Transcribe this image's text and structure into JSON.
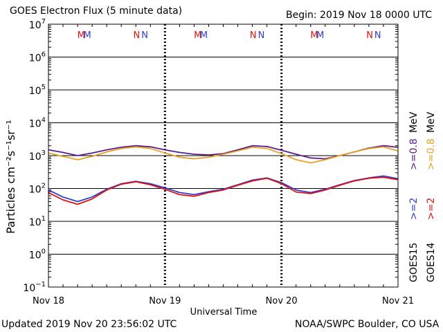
{
  "header": {
    "title": "GOES Electron Flux (5 minute data)",
    "begin": "Begin: 2019 Nov 18 0000 UTC"
  },
  "footer": {
    "updated": "Updated 2019 Nov 20 23:56:02 UTC",
    "credit": "NOAA/SWPC Boulder, CO USA"
  },
  "legend": {
    "goes15": "GOES15",
    "goes14": "GOES14",
    "g15_2mev": ">=2",
    "g14_2mev": ">=2",
    "g15_08mev": ">=0.8",
    "g14_08mev": ">=0.8",
    "mev1": "MeV",
    "mev2": "MeV"
  },
  "colors": {
    "goes15_2mev": "#2d3dd0",
    "goes14_2mev": "#e01010",
    "goes15_08mev": "#5a1a8c",
    "goes14_08mev": "#e8a020",
    "threshold": "#000000"
  },
  "chart_data": {
    "type": "line",
    "xlabel": "Universal Time",
    "ylabel": "Particles cm⁻²s⁻¹sr⁻¹",
    "y_scale": "log",
    "ylim": [
      0.1,
      10000000
    ],
    "xlim": [
      "2019-11-18 00:00",
      "2019-11-21 00:00"
    ],
    "x_ticks": [
      "Nov 18",
      "Nov 19",
      "Nov 20",
      "Nov 21"
    ],
    "y_ticks": [
      {
        "base": "10",
        "exp": "7"
      },
      {
        "base": "10",
        "exp": "6"
      },
      {
        "base": "10",
        "exp": "5"
      },
      {
        "base": "10",
        "exp": "4"
      },
      {
        "base": "10",
        "exp": "3"
      },
      {
        "base": "10",
        "exp": "2"
      },
      {
        "base": "10",
        "exp": "1"
      },
      {
        "base": "10",
        "exp": "0"
      },
      {
        "base": "10",
        "exp": "−1"
      }
    ],
    "threshold": 1000,
    "grid": true,
    "markers": [
      {
        "label": "M",
        "color": "#e01010",
        "x": "2019-11-18 06:45"
      },
      {
        "label": "M",
        "color": "#2d3dd0",
        "x": "2019-11-18 08:00"
      },
      {
        "label": "N",
        "color": "#e01010",
        "x": "2019-11-18 18:10"
      },
      {
        "label": "N",
        "color": "#2d3dd0",
        "x": "2019-11-18 19:50"
      },
      {
        "label": "M",
        "color": "#e01010",
        "x": "2019-11-19 06:45"
      },
      {
        "label": "M",
        "color": "#2d3dd0",
        "x": "2019-11-19 08:00"
      },
      {
        "label": "N",
        "color": "#e01010",
        "x": "2019-11-19 18:10"
      },
      {
        "label": "N",
        "color": "#2d3dd0",
        "x": "2019-11-19 19:50"
      },
      {
        "label": "M",
        "color": "#e01010",
        "x": "2019-11-20 06:45"
      },
      {
        "label": "M",
        "color": "#2d3dd0",
        "x": "2019-11-20 08:00"
      },
      {
        "label": "N",
        "color": "#e01010",
        "x": "2019-11-20 18:10"
      },
      {
        "label": "N",
        "color": "#2d3dd0",
        "x": "2019-11-20 19:50"
      }
    ],
    "series": [
      {
        "color": "#5a1a8c",
        "x": [
          "2019-11-18 00:00",
          "2019-11-18 03:00",
          "2019-11-18 06:00",
          "2019-11-18 09:00",
          "2019-11-18 12:00",
          "2019-11-18 15:00",
          "2019-11-18 18:00",
          "2019-11-18 21:00",
          "2019-11-19 00:00",
          "2019-11-19 03:00",
          "2019-11-19 06:00",
          "2019-11-19 09:00",
          "2019-11-19 12:00",
          "2019-11-19 15:00",
          "2019-11-19 18:00",
          "2019-11-19 21:00",
          "2019-11-20 00:00",
          "2019-11-20 03:00",
          "2019-11-20 06:00",
          "2019-11-20 09:00",
          "2019-11-20 12:00",
          "2019-11-20 15:00",
          "2019-11-20 18:00",
          "2019-11-20 21:00",
          "2019-11-20 23:55"
        ],
        "values": [
          1500,
          1250,
          1000,
          1200,
          1500,
          1800,
          2000,
          1850,
          1500,
          1250,
          1100,
          1050,
          1150,
          1500,
          2000,
          1900,
          1450,
          1100,
          850,
          800,
          1000,
          1300,
          1700,
          2000,
          1800
        ]
      },
      {
        "color": "#e8a020",
        "x": [
          "2019-11-18 00:00",
          "2019-11-18 03:00",
          "2019-11-18 06:00",
          "2019-11-18 09:00",
          "2019-11-18 12:00",
          "2019-11-18 15:00",
          "2019-11-18 18:00",
          "2019-11-18 21:00",
          "2019-11-19 00:00",
          "2019-11-19 03:00",
          "2019-11-19 06:00",
          "2019-11-19 09:00",
          "2019-11-19 12:00",
          "2019-11-19 15:00",
          "2019-11-19 18:00",
          "2019-11-19 21:00",
          "2019-11-20 00:00",
          "2019-11-20 03:00",
          "2019-11-20 06:00",
          "2019-11-20 09:00",
          "2019-11-20 12:00",
          "2019-11-20 15:00",
          "2019-11-20 18:00",
          "2019-11-20 21:00",
          "2019-11-20 23:55"
        ],
        "values": [
          1200,
          950,
          750,
          950,
          1300,
          1650,
          1850,
          1650,
          1200,
          900,
          800,
          900,
          1100,
          1400,
          1800,
          1650,
          1150,
          750,
          600,
          750,
          1000,
          1300,
          1650,
          1850,
          1400
        ]
      },
      {
        "color": "#2d3dd0",
        "x": [
          "2019-11-18 00:00",
          "2019-11-18 03:00",
          "2019-11-18 06:00",
          "2019-11-18 09:00",
          "2019-11-18 12:00",
          "2019-11-18 15:00",
          "2019-11-18 18:00",
          "2019-11-18 21:00",
          "2019-11-19 00:00",
          "2019-11-19 03:00",
          "2019-11-19 06:00",
          "2019-11-19 09:00",
          "2019-11-19 12:00",
          "2019-11-19 15:00",
          "2019-11-19 18:00",
          "2019-11-19 21:00",
          "2019-11-20 00:00",
          "2019-11-20 03:00",
          "2019-11-20 06:00",
          "2019-11-20 09:00",
          "2019-11-20 12:00",
          "2019-11-20 15:00",
          "2019-11-20 18:00",
          "2019-11-20 21:00",
          "2019-11-20 23:55"
        ],
        "values": [
          90,
          55,
          40,
          55,
          95,
          140,
          165,
          140,
          105,
          75,
          65,
          80,
          95,
          130,
          180,
          210,
          150,
          90,
          75,
          95,
          130,
          175,
          210,
          240,
          200
        ]
      },
      {
        "color": "#e01010",
        "x": [
          "2019-11-18 00:00",
          "2019-11-18 03:00",
          "2019-11-18 06:00",
          "2019-11-18 09:00",
          "2019-11-18 12:00",
          "2019-11-18 15:00",
          "2019-11-18 18:00",
          "2019-11-18 21:00",
          "2019-11-19 00:00",
          "2019-11-19 03:00",
          "2019-11-19 06:00",
          "2019-11-19 09:00",
          "2019-11-19 12:00",
          "2019-11-19 15:00",
          "2019-11-19 18:00",
          "2019-11-19 21:00",
          "2019-11-20 00:00",
          "2019-11-20 03:00",
          "2019-11-20 06:00",
          "2019-11-20 09:00",
          "2019-11-20 12:00",
          "2019-11-20 15:00",
          "2019-11-20 18:00",
          "2019-11-20 21:00",
          "2019-11-20 23:55"
        ],
        "values": [
          75,
          45,
          33,
          48,
          90,
          135,
          160,
          130,
          95,
          65,
          58,
          75,
          90,
          125,
          170,
          205,
          140,
          78,
          70,
          90,
          125,
          170,
          205,
          220,
          185
        ]
      }
    ]
  }
}
